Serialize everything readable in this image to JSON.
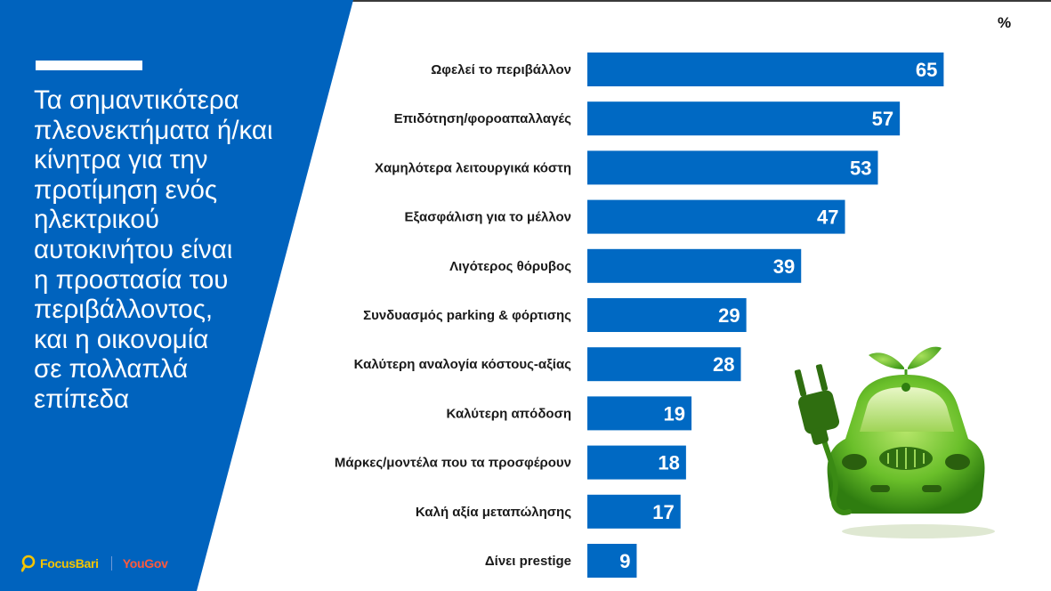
{
  "headline": "Τα σημαντικότερα\nπλεονεκτήματα ή/και\nκίνητρα για την\nπροτίμηση ενός\nηλεκτρικού\nαυτοκινήτου είναι\nη προστασία του\nπεριβάλλοντος,\nκαι η οικονομία\nσε πολλαπλά\nεπίπεδα",
  "logos": {
    "focus": "FocusBari",
    "yougov": "YouGov"
  },
  "colors": {
    "panel": "#0063be",
    "bar": "#0069c3",
    "bar_label": "#ffffff",
    "text": "#1a1a1a",
    "car": "#6abf2a"
  },
  "icons": [
    "electric-car-icon",
    "plug-icon",
    "leaf-icon",
    "magnifier-icon"
  ],
  "chart_data": {
    "type": "bar",
    "orientation": "horizontal",
    "unit_label": "%",
    "categories": [
      "Ωφελεί το περιβάλλον",
      "Επιδότηση/φοροαπαλλαγές",
      "Χαμηλότερα λειτουργικά κόστη",
      "Εξασφάλιση για το μέλλον",
      "Λιγότερος θόρυβος",
      "Συνδυασμός parking & φόρτισης",
      "Καλύτερη αναλογία κόστους-αξίας",
      "Καλύτερη απόδοση",
      "Μάρκες/μοντέλα που τα προσφέρουν",
      "Καλή αξία μεταπώλησης",
      "Δίνει prestige"
    ],
    "values": [
      65,
      57,
      53,
      47,
      39,
      29,
      28,
      19,
      18,
      17,
      9
    ],
    "data_labels": true,
    "gridlines": false,
    "legend": "none"
  }
}
